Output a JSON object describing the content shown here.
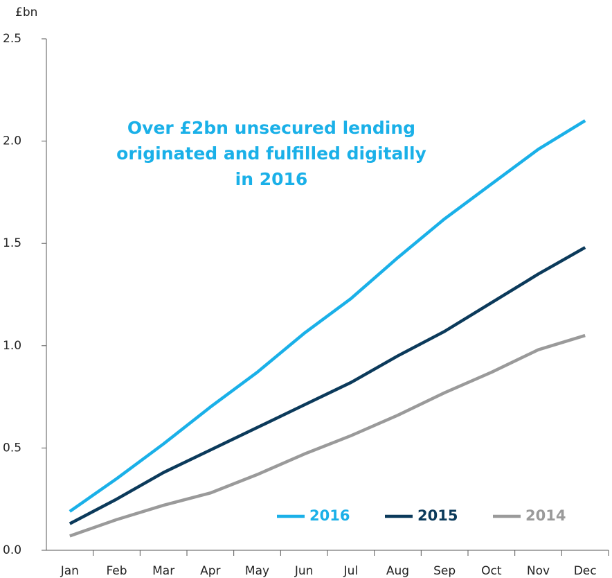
{
  "chart_data": {
    "type": "line",
    "y_label": "£bn",
    "annotation": [
      "Over £2bn unsecured lending",
      "originated and fulfilled digitally",
      "in 2016"
    ],
    "categories": [
      "Jan",
      "Feb",
      "Mar",
      "Apr",
      "May",
      "Jun",
      "Jul",
      "Aug",
      "Sep",
      "Oct",
      "Nov",
      "Dec"
    ],
    "series": [
      {
        "name": "2016",
        "color": "#1ab0e8",
        "values": [
          0.19,
          0.35,
          0.52,
          0.7,
          0.87,
          1.06,
          1.23,
          1.43,
          1.62,
          1.79,
          1.96,
          2.1
        ]
      },
      {
        "name": "2015",
        "color": "#0b3a5b",
        "values": [
          0.13,
          0.25,
          0.38,
          0.49,
          0.6,
          0.71,
          0.82,
          0.95,
          1.07,
          1.21,
          1.35,
          1.48
        ]
      },
      {
        "name": "2014",
        "color": "#9a9a9a",
        "values": [
          0.07,
          0.15,
          0.22,
          0.28,
          0.37,
          0.47,
          0.56,
          0.66,
          0.77,
          0.87,
          0.98,
          1.05
        ]
      }
    ],
    "ylim": [
      0,
      2.5
    ],
    "yticks": [
      {
        "value": 0,
        "label": "0.0"
      },
      0.5,
      {
        "value": 1,
        "label": "1.0"
      },
      1.5,
      {
        "value": 2,
        "label": "2.0"
      },
      2.5
    ],
    "grid": false,
    "legend": "bottom-right"
  }
}
